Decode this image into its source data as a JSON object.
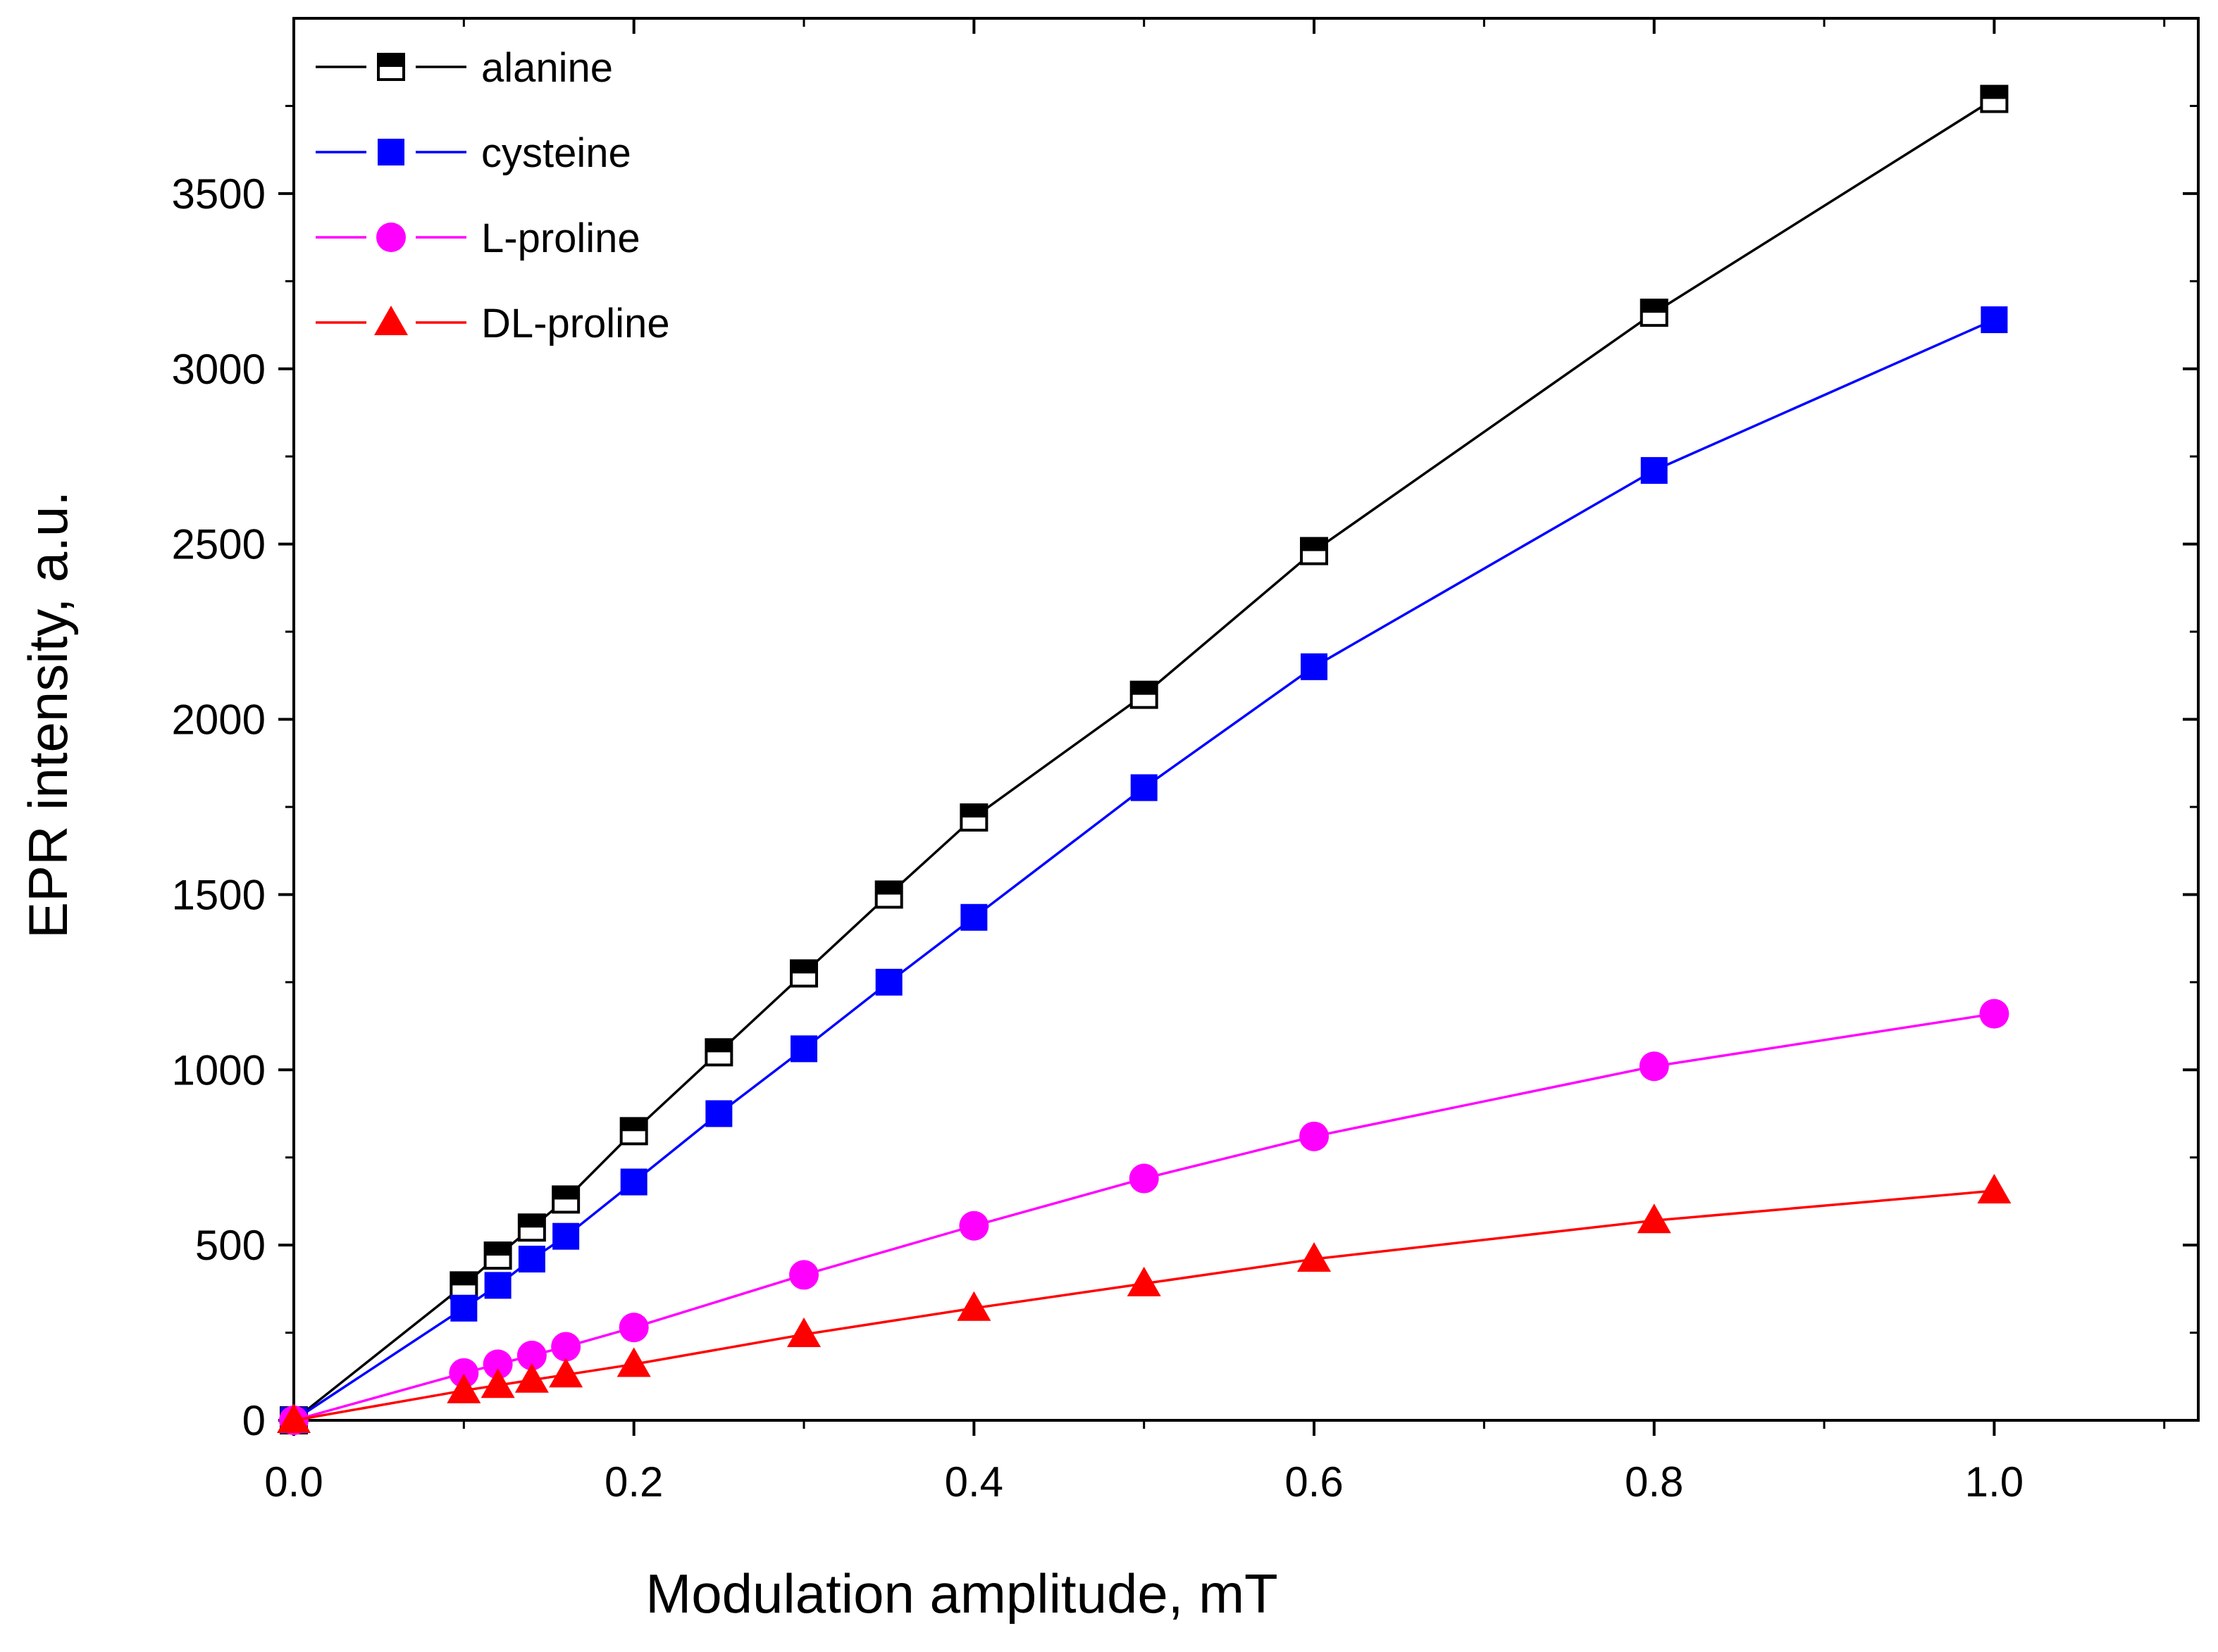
{
  "chart_data": {
    "type": "line",
    "title": "",
    "xlabel": "Modulation amplitude, mT",
    "ylabel": "EPR intensity, a.u.",
    "xlim": [
      0,
      1.12
    ],
    "ylim": [
      0,
      4000
    ],
    "xticks": [
      0.0,
      0.2,
      0.4,
      0.6,
      0.8,
      1.0
    ],
    "xtick_labels": [
      "0.0",
      "0.2",
      "0.4",
      "0.6",
      "0.8",
      "1.0"
    ],
    "xminor": [
      0.1,
      0.3,
      0.5,
      0.7,
      0.9,
      1.1
    ],
    "yticks": [
      0,
      500,
      1000,
      1500,
      2000,
      2500,
      3000,
      3500
    ],
    "ytick_labels": [
      "0",
      "500",
      "1000",
      "1500",
      "2000",
      "2500",
      "3000",
      "3500"
    ],
    "yminor": [
      250,
      750,
      1250,
      1750,
      2250,
      2750,
      3250,
      3750
    ],
    "grid": false,
    "legend_position": "top-left",
    "series": [
      {
        "name": "alanine",
        "color": "#000000",
        "marker": "half-filled-square",
        "x": [
          0,
          0.1,
          0.12,
          0.14,
          0.16,
          0.2,
          0.25,
          0.3,
          0.35,
          0.4,
          0.5,
          0.6,
          0.8,
          1.0
        ],
        "y": [
          0,
          385,
          470,
          550,
          630,
          825,
          1050,
          1275,
          1500,
          1720,
          2070,
          2480,
          3160,
          3770
        ]
      },
      {
        "name": "cysteine",
        "color": "#0000ff",
        "marker": "filled-square",
        "x": [
          0,
          0.1,
          0.12,
          0.14,
          0.16,
          0.2,
          0.25,
          0.3,
          0.35,
          0.4,
          0.5,
          0.6,
          0.8,
          1.0
        ],
        "y": [
          0,
          320,
          385,
          460,
          525,
          680,
          875,
          1060,
          1250,
          1435,
          1805,
          2150,
          2710,
          3140
        ]
      },
      {
        "name": "L-proline",
        "color": "#ff00ff",
        "marker": "circle",
        "x": [
          0,
          0.1,
          0.12,
          0.14,
          0.16,
          0.2,
          0.3,
          0.4,
          0.5,
          0.6,
          0.8,
          1.0
        ],
        "y": [
          0,
          135,
          160,
          185,
          210,
          265,
          415,
          555,
          690,
          810,
          1010,
          1160
        ]
      },
      {
        "name": "DL-proline",
        "color": "#ff0000",
        "marker": "triangle",
        "x": [
          0,
          0.1,
          0.12,
          0.14,
          0.16,
          0.2,
          0.3,
          0.4,
          0.5,
          0.6,
          0.8,
          1.0
        ],
        "y": [
          0,
          85,
          100,
          115,
          130,
          160,
          245,
          320,
          390,
          460,
          570,
          655
        ]
      }
    ]
  }
}
